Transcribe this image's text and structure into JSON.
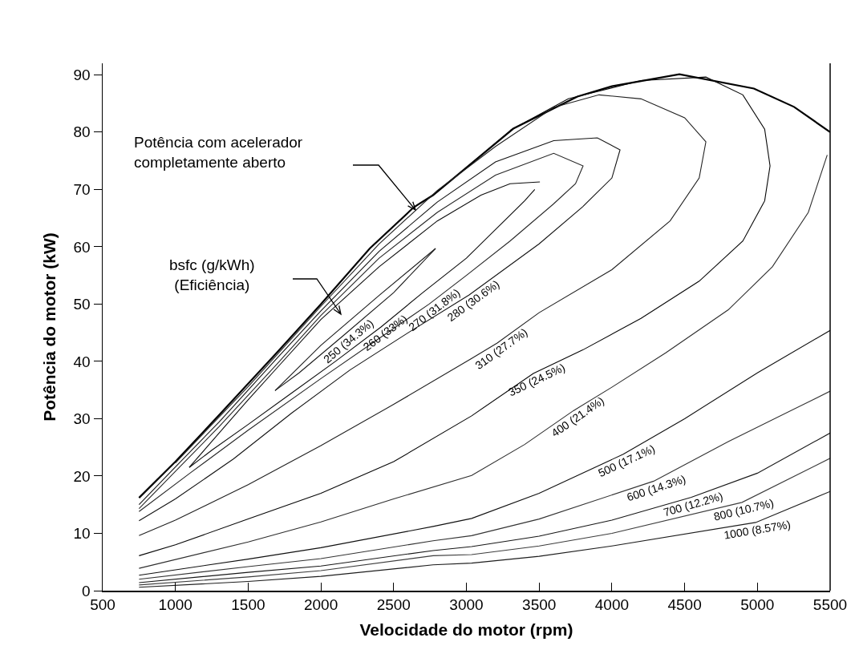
{
  "chart_data": {
    "type": "line",
    "xlabel": "Velocidade do motor (rpm)",
    "ylabel": "Potência do motor (kW)",
    "xlim": [
      500,
      5500
    ],
    "xticks": [
      500,
      1000,
      1500,
      2000,
      2500,
      3000,
      3500,
      4000,
      4500,
      5000,
      5500
    ],
    "ylim": [
      0,
      92
    ],
    "yticks": [
      0,
      10,
      20,
      30,
      40,
      50,
      60,
      70,
      80,
      90
    ],
    "grid": false,
    "marker": "none",
    "line_style": "solid",
    "series": [
      {
        "color": "#000000",
        "x": [
          750,
          1000,
          1288,
          1696,
          2000,
          2336,
          2639,
          2771,
          3000,
          3322,
          3763,
          4000,
          4464,
          4976,
          5252,
          5500
        ],
        "values": [
          16.2,
          22.5,
          30.3,
          41.5,
          50,
          59.7,
          66.9,
          69,
          73.8,
          80.6,
          86.2,
          88,
          90.1,
          87.6,
          84.4,
          80
        ]
      },
      {
        "color": "#1a1a1a",
        "x": [
          1685,
          2000,
          2400,
          2788
        ],
        "values": [
          34.9,
          42.8,
          51.5,
          59.7
        ]
      },
      {
        "color": "#1a1a1a",
        "x": [
          1685,
          1850,
          2154,
          2500,
          2788
        ],
        "values": [
          34.9,
          38,
          44.5,
          52,
          59.7
        ]
      },
      {
        "color": "#0d0d0d",
        "x": [
          1095,
          1300,
          1500,
          1696,
          2000,
          2400,
          2800,
          3100,
          3300,
          3505
        ],
        "values": [
          21.5,
          27.5,
          33.3,
          38.8,
          47.3,
          56.5,
          64.5,
          69,
          71,
          71.3
        ]
      },
      {
        "color": "#0d0d0d",
        "x": [
          1095,
          1250,
          1500,
          1800,
          2100,
          2413,
          2700,
          3000,
          3200,
          3400,
          3470
        ],
        "values": [
          21.5,
          24.5,
          29,
          34.5,
          40,
          46,
          52,
          58,
          63,
          68,
          70
        ]
      },
      {
        "color": "#262626",
        "x": [
          750,
          1000,
          1300,
          1700,
          2000,
          2400,
          2800,
          3200,
          3600,
          3802,
          3750,
          3600,
          3300,
          3000,
          2744,
          2400,
          2000,
          1500,
          1100,
          750
        ],
        "values": [
          14.3,
          20.8,
          28.6,
          39.6,
          48,
          58,
          66,
          72.5,
          76.3,
          74.1,
          71,
          67.5,
          61,
          55,
          50,
          44,
          37,
          28,
          20.5,
          13.8
        ]
      },
      {
        "color": "#131313",
        "x": [
          750,
          1000,
          1300,
          1700,
          2000,
          2400,
          2800,
          3200,
          3600,
          3900,
          4056,
          4000,
          3800,
          3500,
          3019,
          2600,
          2200,
          1800,
          1400,
          1000,
          750
        ],
        "values": [
          15,
          21.6,
          29.4,
          40.6,
          48.8,
          59.2,
          67.8,
          74.8,
          78.5,
          79,
          76.9,
          72,
          67,
          60.5,
          51.6,
          45,
          38.5,
          31,
          23,
          16,
          12.2
        ]
      },
      {
        "color": "#202020",
        "x": [
          1000,
          1500,
          2000,
          2400,
          2800,
          3200,
          3600,
          3912,
          4200,
          4500,
          4646,
          4600,
          4400,
          4000,
          3500,
          3212,
          3036,
          2500,
          2000,
          1500,
          1000,
          750
        ],
        "values": [
          22.3,
          35.6,
          49.6,
          60.5,
          69.8,
          77.5,
          84.3,
          86.5,
          85.8,
          82.5,
          78.3,
          72,
          64.5,
          56,
          48.5,
          43.2,
          40.5,
          32.5,
          25.3,
          18.5,
          12.3,
          9.6
        ]
      },
      {
        "color": "#070707",
        "x": [
          3300,
          3700,
          4200,
          4646,
          4900,
          5050,
          5087,
          5050,
          4900,
          4600,
          4200,
          3800,
          3460,
          3036,
          2500,
          2000,
          1500,
          1000,
          750
        ],
        "values": [
          80.3,
          85.8,
          89,
          89.6,
          86.5,
          80.5,
          74.1,
          68,
          61,
          54,
          47.5,
          42,
          37.9,
          30.5,
          22.5,
          17,
          12.5,
          8,
          6.1
        ]
      },
      {
        "color": "#2d2d2d",
        "x": [
          750,
          1500,
          2000,
          2500,
          3036,
          3400,
          3736,
          4000,
          4370,
          4800,
          5103,
          5350,
          5480
        ],
        "values": [
          3.9,
          8.5,
          12,
          16,
          20.1,
          25.5,
          31.4,
          35.5,
          41.5,
          49,
          56.5,
          66,
          76
        ]
      },
      {
        "color": "#101010",
        "x": [
          750,
          1500,
          2000,
          2771,
          3036,
          3500,
          4078,
          4500,
          5000,
          5500
        ],
        "values": [
          2.7,
          5.5,
          7.5,
          11.2,
          12.6,
          17,
          23.8,
          30,
          38,
          45.4
        ]
      },
      {
        "color": "#333333",
        "x": [
          750,
          1500,
          2000,
          2771,
          3036,
          3500,
          4287,
          4800,
          5500
        ],
        "values": [
          2,
          4.2,
          5.6,
          8.7,
          9.6,
          12.5,
          19.1,
          26,
          34.8
        ]
      },
      {
        "color": "#171717",
        "x": [
          750,
          1500,
          2000,
          2771,
          3036,
          3500,
          4000,
          4546,
          5000,
          5500
        ],
        "values": [
          1.4,
          3.2,
          4.3,
          7,
          7.7,
          9.5,
          12.3,
          16.3,
          20.5,
          27.5
        ]
      },
      {
        "color": "#3d3d3d",
        "x": [
          750,
          1500,
          2000,
          2771,
          3036,
          3500,
          4000,
          4894,
          5500
        ],
        "values": [
          1,
          2.4,
          3.5,
          6.1,
          6.3,
          7.8,
          10,
          15.4,
          23.1
        ]
      },
      {
        "color": "#1d1d1d",
        "x": [
          750,
          1500,
          2000,
          2771,
          3036,
          3500,
          4000,
          4988,
          5500
        ],
        "values": [
          0.6,
          1.6,
          2.5,
          4.5,
          4.8,
          6,
          7.8,
          11.9,
          17.3
        ]
      }
    ],
    "annotations": [
      "Potência com acelerador\ncompletamente aberto",
      "bsfc (g/kWh)\n(Eficiência)",
      {
        "text": "250 (34.3%)",
        "x": 2154,
        "y": 44.5
      },
      {
        "text": "260 (33%)",
        "x": 2413,
        "y": 46
      },
      {
        "text": "270 (31.8%)",
        "x": 2744,
        "y": 50
      },
      {
        "text": "280 (30.6%)",
        "x": 3019,
        "y": 51.6
      },
      {
        "text": "310 (27.7%)",
        "x": 3212,
        "y": 43.2
      },
      {
        "text": "350 (24.5%)",
        "x": 3460,
        "y": 37.9
      },
      {
        "text": "400 (21.4%)",
        "x": 3736,
        "y": 31.4
      },
      {
        "text": "500 (17.1%)",
        "x": 4078,
        "y": 23.8
      },
      {
        "text": "600 (14.3%)",
        "x": 4287,
        "y": 19.1
      },
      {
        "text": "700 (12.2%)",
        "x": 4546,
        "y": 16.3
      },
      {
        "text": "800 (10.7%)",
        "x": 4894,
        "y": 15.4
      },
      {
        "text": "1000 (8.57%)",
        "x": 4988,
        "y": 11.9
      }
    ]
  }
}
